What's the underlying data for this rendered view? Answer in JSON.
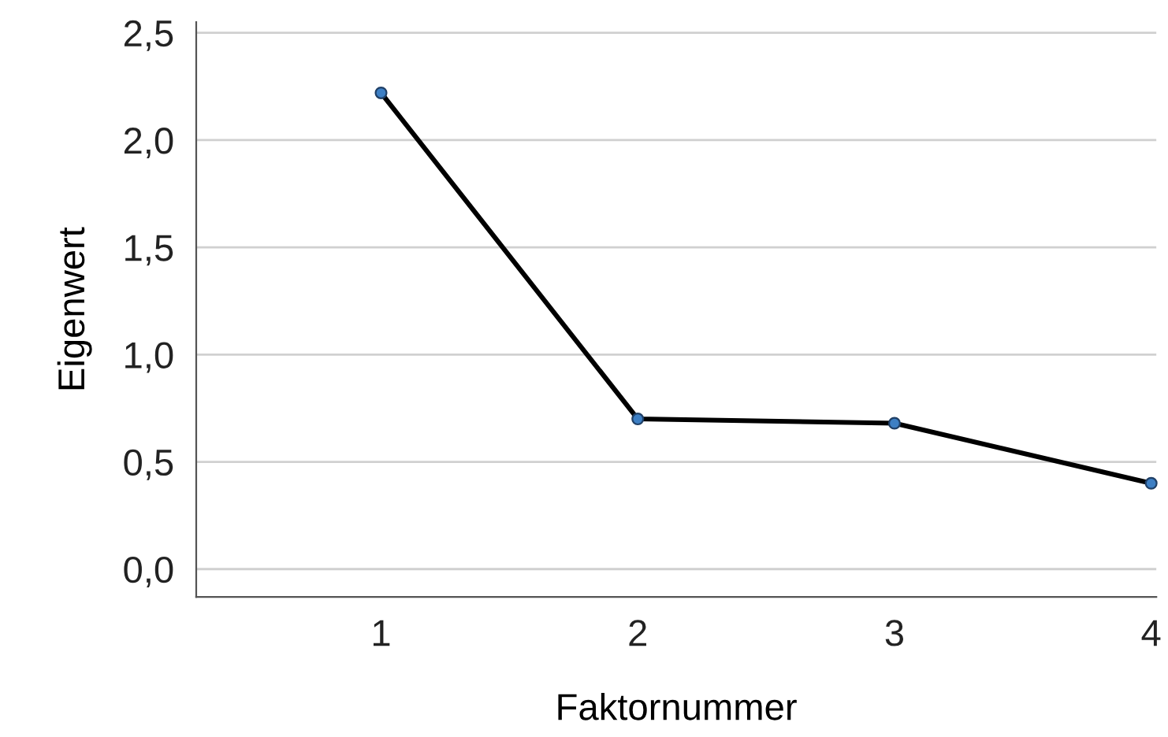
{
  "chart_data": {
    "type": "line",
    "xlabel": "Faktornummer",
    "ylabel": "Eigenwert",
    "x": [
      1,
      2,
      3,
      4
    ],
    "series": [
      {
        "color": "#000000",
        "values": [
          2.22,
          0.7,
          0.68,
          0.4
        ]
      }
    ],
    "marker": "circle",
    "xlim": [
      0.28,
      4.02
    ],
    "xticks": [
      1,
      2,
      3,
      4
    ],
    "ylim": [
      -0.13,
      2.55
    ],
    "yticks": [
      {
        "value": 0,
        "label": "0,0"
      },
      {
        "value": 0.5,
        "label": "0,5"
      },
      {
        "value": 1,
        "label": "1,0"
      },
      {
        "value": 1.5,
        "label": "1,5"
      },
      {
        "value": 2,
        "label": "2,0"
      },
      {
        "value": 2.5,
        "label": "2,5"
      }
    ],
    "grid": "y"
  }
}
